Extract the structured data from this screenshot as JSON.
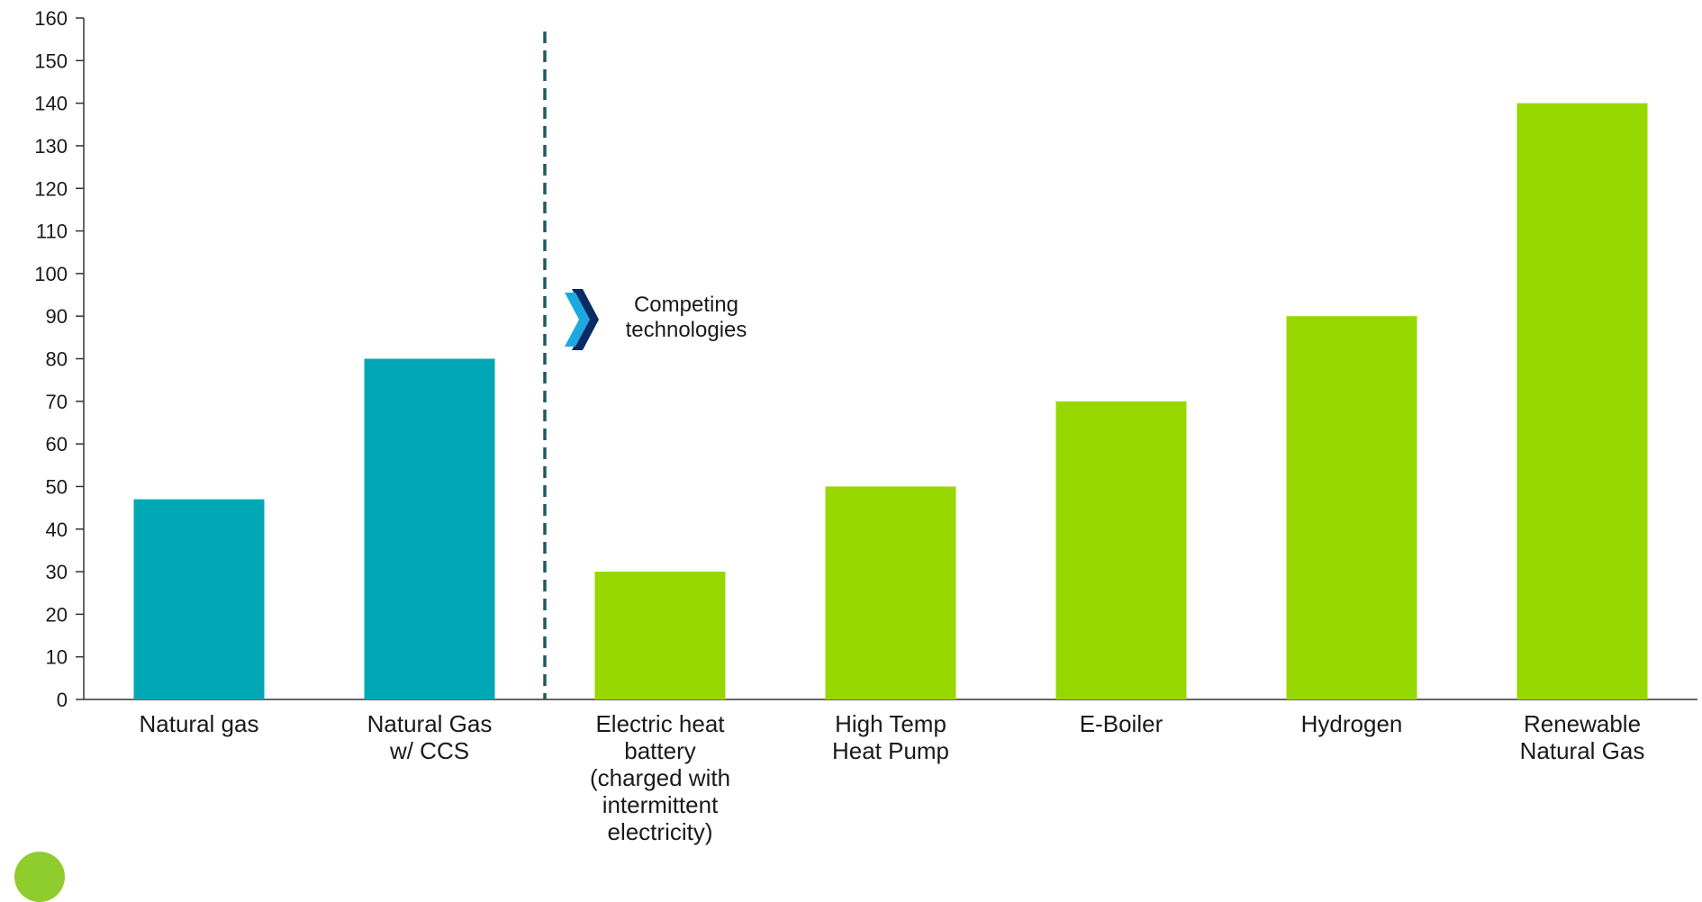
{
  "chart_data": {
    "type": "bar",
    "categories": [
      "Natural gas",
      "Natural Gas w/ CCS",
      "Electric heat battery (charged with intermittent electricity)",
      "High Temp Heat Pump",
      "E-Boiler",
      "Hydrogen",
      "Renewable Natural Gas"
    ],
    "category_lines": [
      [
        "Natural gas"
      ],
      [
        "Natural Gas",
        "w/ CCS"
      ],
      [
        "Electric heat",
        "battery",
        "(charged with",
        "intermittent",
        "electricity)"
      ],
      [
        "High Temp",
        "Heat Pump"
      ],
      [
        "E-Boiler"
      ],
      [
        "Hydrogen"
      ],
      [
        "Renewable",
        "Natural Gas"
      ]
    ],
    "values": [
      47,
      80,
      30,
      50,
      70,
      90,
      140
    ],
    "groups": [
      "incumbent",
      "incumbent",
      "competing",
      "competing",
      "competing",
      "competing",
      "competing"
    ],
    "ylim": [
      0,
      160
    ],
    "yticks": [
      0,
      10,
      20,
      30,
      40,
      50,
      60,
      70,
      80,
      90,
      100,
      110,
      120,
      130,
      140,
      150,
      160
    ],
    "title": "",
    "xlabel": "",
    "ylabel": "",
    "grid": false,
    "divider_after_category_index": 1,
    "annotation": {
      "lines": [
        "Competing",
        "technologies"
      ],
      "icon": "double-chevron-right-icon"
    },
    "colors": {
      "incumbent": "#00a8b5",
      "competing": "#97d700",
      "divider": "#1e5a5e",
      "chevron_front": "#1fa8e0",
      "chevron_back": "#0b2a66",
      "axis": "#333333"
    }
  }
}
